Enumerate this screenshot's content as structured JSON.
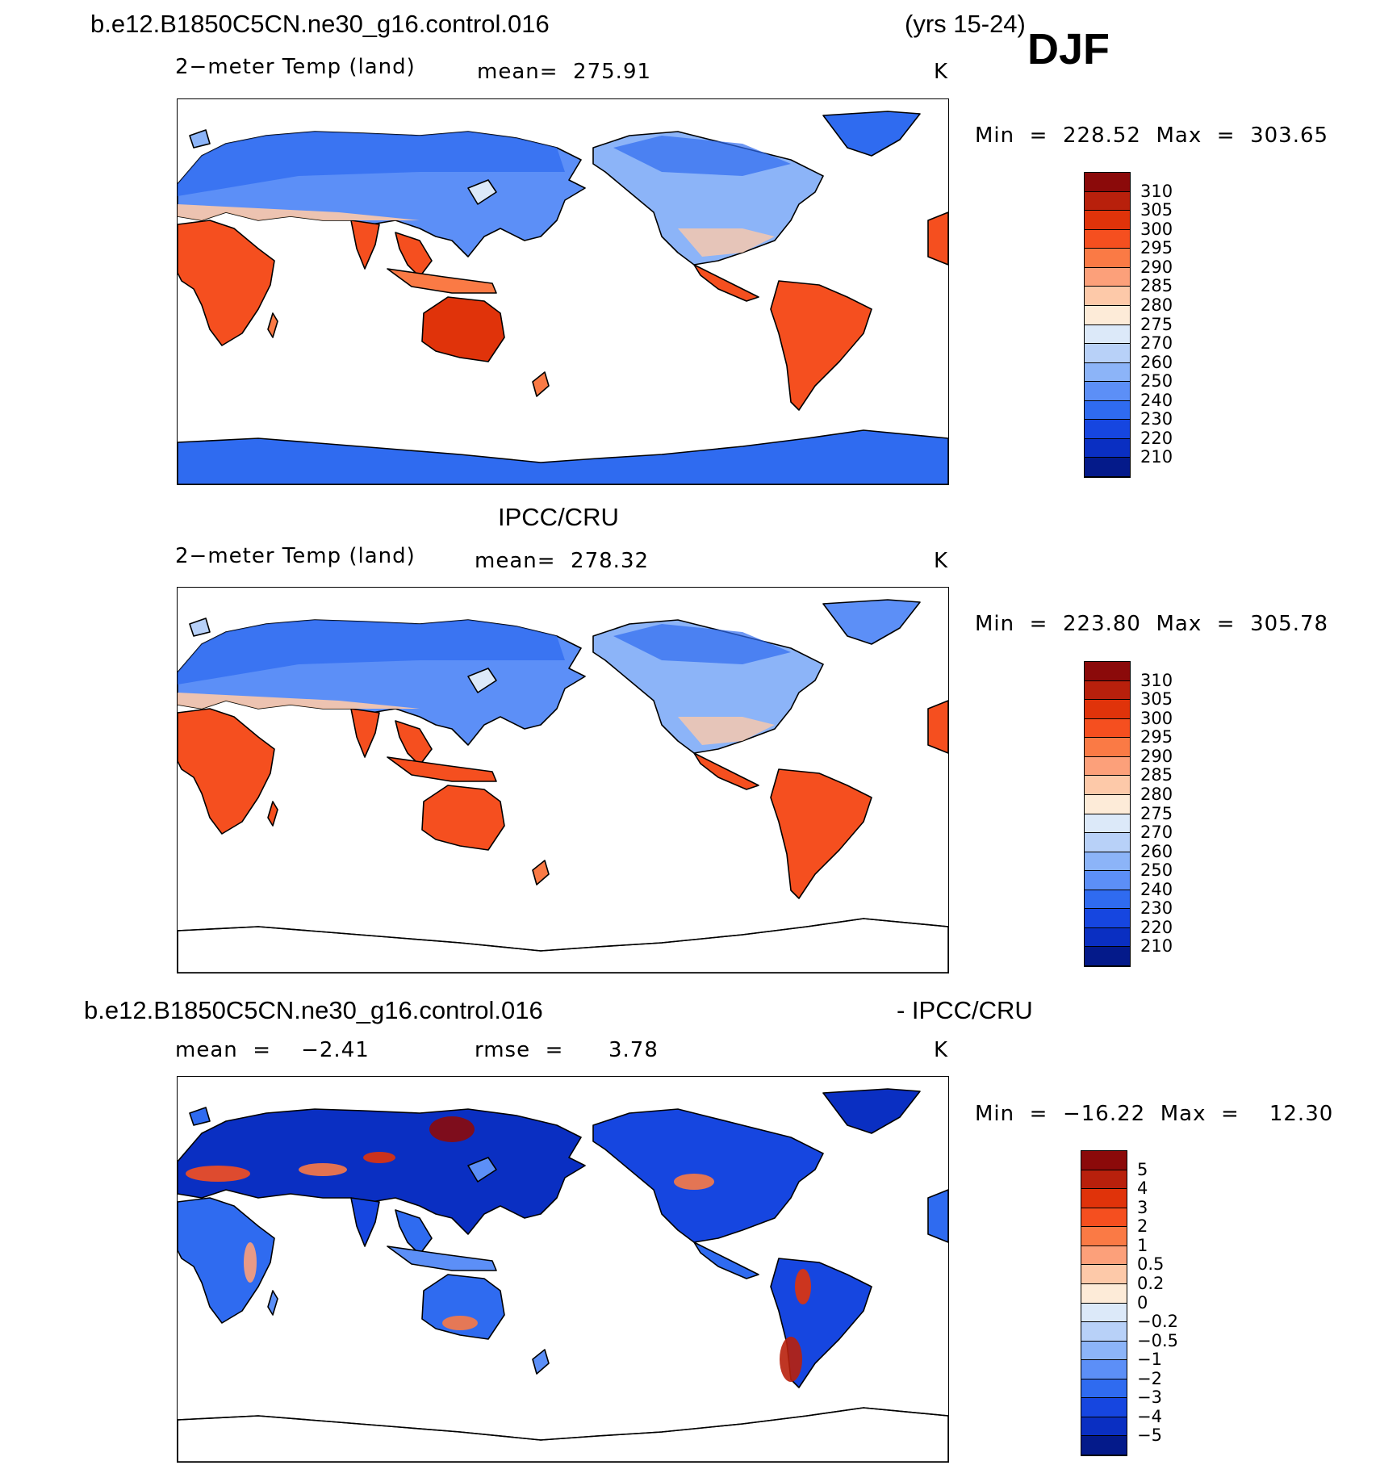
{
  "header": {
    "case_name": "b.e12.B1850C5CN.ne30_g16.control.016",
    "years": "(yrs 15-24)",
    "season": "DJF"
  },
  "panels": [
    {
      "id": "model",
      "section_title": "",
      "variable": "2−meter Temp (land)",
      "stat1": "mean=  275.91",
      "stat2": "",
      "units": "K",
      "minmax": "Min  =  228.52  Max  =  303.65",
      "colorbar": {
        "labels": [
          "310",
          "305",
          "300",
          "295",
          "290",
          "285",
          "280",
          "275",
          "270",
          "260",
          "250",
          "240",
          "230",
          "220",
          "210"
        ],
        "colors": [
          "#8b0a0a",
          "#b8200c",
          "#e0330a",
          "#f54f1f",
          "#fa7a45",
          "#fca07a",
          "#fdc9a9",
          "#fdebd8",
          "#dce9f9",
          "#b8d1f8",
          "#8cb4f8",
          "#5c8ff7",
          "#2f6bf0",
          "#1646e0",
          "#0a2fc2",
          "#041a8a"
        ]
      },
      "map": {
        "ocean_fill": false,
        "antarctica_fill": true,
        "anomaly": false
      }
    },
    {
      "id": "obs",
      "section_title": "IPCC/CRU",
      "variable": "2−meter Temp (land)",
      "stat1": "mean=  278.32",
      "stat2": "",
      "units": "K",
      "minmax": "Min  =  223.80  Max  =  305.78",
      "colorbar": {
        "labels": [
          "310",
          "305",
          "300",
          "295",
          "290",
          "285",
          "280",
          "275",
          "270",
          "260",
          "250",
          "240",
          "230",
          "220",
          "210"
        ],
        "colors": [
          "#8b0a0a",
          "#b8200c",
          "#e0330a",
          "#f54f1f",
          "#fa7a45",
          "#fca07a",
          "#fdc9a9",
          "#fdebd8",
          "#dce9f9",
          "#b8d1f8",
          "#8cb4f8",
          "#5c8ff7",
          "#2f6bf0",
          "#1646e0",
          "#0a2fc2",
          "#041a8a"
        ]
      },
      "map": {
        "ocean_fill": false,
        "antarctica_fill": false,
        "anomaly": false
      }
    },
    {
      "id": "diff",
      "section_title": "b.e12.B1850C5CN.ne30_g16.control.016",
      "section_title_right": "- IPCC/CRU",
      "variable": "",
      "stat1": "mean  =    −2.41",
      "stat2": "rmse  =      3.78",
      "units": "K",
      "minmax": "Min  =  −16.22  Max  =    12.30",
      "colorbar": {
        "labels": [
          "5",
          "4",
          "3",
          "2",
          "1",
          "0.5",
          "0.2",
          "0",
          "−0.2",
          "−0.5",
          "−1",
          "−2",
          "−3",
          "−4",
          "−5"
        ],
        "colors": [
          "#8b0a0a",
          "#b8200c",
          "#e0330a",
          "#f54f1f",
          "#fa7a45",
          "#fca07a",
          "#fdc9a9",
          "#fdebd8",
          "#dce9f9",
          "#b8d1f8",
          "#8cb4f8",
          "#5c8ff7",
          "#2f6bf0",
          "#1646e0",
          "#0a2fc2",
          "#041a8a"
        ]
      },
      "map": {
        "ocean_fill": false,
        "antarctica_fill": false,
        "anomaly": true
      }
    }
  ]
}
